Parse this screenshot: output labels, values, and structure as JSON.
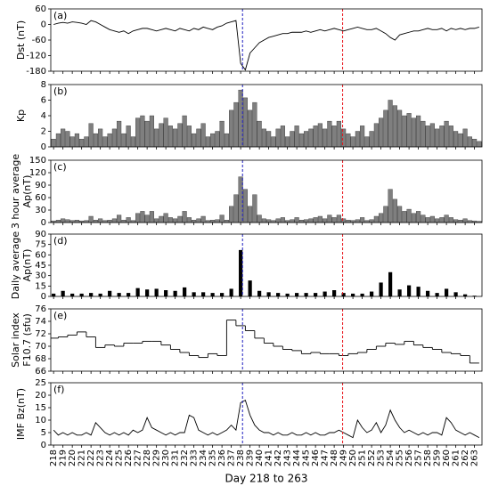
{
  "chart_data": [
    {
      "type": "line",
      "panel_label": "(a)",
      "ylabel": [
        "Dst (nT)"
      ],
      "color": "#000000",
      "xlim": [
        217.7,
        263.8
      ],
      "ylim": [
        -180,
        60
      ],
      "yticks": [
        -180,
        -120,
        -60,
        0,
        60
      ],
      "x": [
        218,
        218.5,
        219,
        219.5,
        220,
        220.5,
        221,
        221.5,
        222,
        222.5,
        223,
        223.5,
        224,
        224.5,
        225,
        225.5,
        226,
        226.5,
        227,
        227.5,
        228,
        228.5,
        229,
        229.5,
        230,
        230.5,
        231,
        231.5,
        232,
        232.5,
        233,
        233.5,
        234,
        234.5,
        235,
        235.5,
        236,
        236.5,
        237,
        237.5,
        238,
        238.5,
        239,
        239.5,
        240,
        240.5,
        241,
        241.5,
        242,
        242.5,
        243,
        243.5,
        244,
        244.5,
        245,
        245.5,
        246,
        246.5,
        247,
        247.5,
        248,
        248.5,
        249,
        249.5,
        250,
        250.5,
        251,
        251.5,
        252,
        252.5,
        253,
        253.5,
        254,
        254.5,
        255,
        255.5,
        256,
        256.5,
        257,
        257.5,
        258,
        258.5,
        259,
        259.5,
        260,
        260.5,
        261,
        261.5,
        262,
        262.5,
        263,
        263.5
      ],
      "values": [
        0,
        5,
        8,
        5,
        10,
        8,
        5,
        0,
        15,
        10,
        0,
        -10,
        -20,
        -25,
        -30,
        -25,
        -35,
        -25,
        -20,
        -15,
        -15,
        -20,
        -25,
        -20,
        -15,
        -20,
        -25,
        -15,
        -20,
        -25,
        -15,
        -20,
        -10,
        -15,
        -20,
        -10,
        -5,
        5,
        10,
        15,
        -150,
        -175,
        -110,
        -90,
        -70,
        -60,
        -50,
        -45,
        -40,
        -35,
        -35,
        -30,
        -30,
        -30,
        -25,
        -30,
        -25,
        -20,
        -25,
        -20,
        -15,
        -20,
        -25,
        -20,
        -15,
        -10,
        -15,
        -20,
        -20,
        -15,
        -25,
        -35,
        -50,
        -60,
        -40,
        -35,
        -30,
        -25,
        -25,
        -20,
        -15,
        -20,
        -20,
        -15,
        -25,
        -15,
        -20,
        -15,
        -20,
        -15,
        -15,
        -10
      ]
    },
    {
      "type": "bar",
      "panel_label": "(b)",
      "ylabel": [
        "Kp"
      ],
      "color": "#7f7f7f",
      "xlim": [
        217.7,
        263.8
      ],
      "ylim": [
        0,
        8
      ],
      "yticks": [
        0,
        2,
        4,
        6,
        8
      ],
      "x": [
        218,
        218.5,
        219,
        219.5,
        220,
        220.5,
        221,
        221.5,
        222,
        222.5,
        223,
        223.5,
        224,
        224.5,
        225,
        225.5,
        226,
        226.5,
        227,
        227.5,
        228,
        228.5,
        229,
        229.5,
        230,
        230.5,
        231,
        231.5,
        232,
        232.5,
        233,
        233.5,
        234,
        234.5,
        235,
        235.5,
        236,
        236.5,
        237,
        237.5,
        238,
        238.5,
        239,
        239.5,
        240,
        240.5,
        241,
        241.5,
        242,
        242.5,
        243,
        243.5,
        244,
        244.5,
        245,
        245.5,
        246,
        246.5,
        247,
        247.5,
        248,
        248.5,
        249,
        249.5,
        250,
        250.5,
        251,
        251.5,
        252,
        252.5,
        253,
        253.5,
        254,
        254.5,
        255,
        255.5,
        256,
        256.5,
        257,
        257.5,
        258,
        258.5,
        259,
        259.5,
        260,
        260.5,
        261,
        261.5,
        262,
        262.5,
        263,
        263.5
      ],
      "values": [
        1.0,
        1.7,
        2.3,
        2.0,
        1.3,
        1.7,
        1.0,
        1.3,
        3.0,
        1.7,
        2.3,
        1.3,
        1.7,
        2.3,
        3.3,
        1.7,
        2.7,
        1.3,
        3.7,
        4.0,
        3.3,
        4.0,
        2.3,
        3.0,
        3.7,
        2.7,
        2.3,
        3.0,
        4.0,
        2.7,
        1.7,
        2.3,
        3.0,
        1.3,
        1.7,
        2.0,
        3.3,
        1.7,
        4.7,
        5.7,
        7.3,
        6.3,
        4.7,
        5.7,
        3.3,
        2.3,
        2.0,
        1.3,
        2.3,
        2.7,
        1.3,
        2.0,
        2.7,
        1.7,
        2.0,
        2.3,
        2.7,
        3.0,
        2.3,
        3.3,
        2.7,
        3.3,
        2.3,
        1.7,
        1.3,
        2.0,
        2.7,
        1.3,
        2.0,
        3.0,
        3.7,
        4.7,
        6.0,
        5.3,
        4.7,
        4.0,
        4.3,
        3.7,
        4.0,
        3.3,
        2.7,
        3.0,
        2.3,
        2.7,
        3.3,
        2.7,
        2.0,
        1.7,
        2.3,
        1.3,
        1.0,
        0.7
      ]
    },
    {
      "type": "bar",
      "panel_label": "(c)",
      "ylabel": [
        "3 hour average",
        "Ap(nT)"
      ],
      "color": "#7f7f7f",
      "xlim": [
        217.7,
        263.8
      ],
      "ylim": [
        0,
        150
      ],
      "yticks": [
        0,
        30,
        60,
        90,
        120,
        150
      ],
      "x": [
        218,
        218.5,
        219,
        219.5,
        220,
        220.5,
        221,
        221.5,
        222,
        222.5,
        223,
        223.5,
        224,
        224.5,
        225,
        225.5,
        226,
        226.5,
        227,
        227.5,
        228,
        228.5,
        229,
        229.5,
        230,
        230.5,
        231,
        231.5,
        232,
        232.5,
        233,
        233.5,
        234,
        234.5,
        235,
        235.5,
        236,
        236.5,
        237,
        237.5,
        238,
        238.5,
        239,
        239.5,
        240,
        240.5,
        241,
        241.5,
        242,
        242.5,
        243,
        243.5,
        244,
        244.5,
        245,
        245.5,
        246,
        246.5,
        247,
        247.5,
        248,
        248.5,
        249,
        249.5,
        250,
        250.5,
        251,
        251.5,
        252,
        252.5,
        253,
        253.5,
        254,
        254.5,
        255,
        255.5,
        256,
        256.5,
        257,
        257.5,
        258,
        258.5,
        259,
        259.5,
        260,
        260.5,
        261,
        261.5,
        262,
        262.5,
        263,
        263.5
      ],
      "values": [
        4,
        6,
        9,
        7,
        5,
        6,
        4,
        5,
        15,
        6,
        9,
        5,
        6,
        9,
        18,
        6,
        12,
        5,
        22,
        27,
        18,
        27,
        9,
        15,
        22,
        12,
        9,
        15,
        27,
        12,
        6,
        9,
        15,
        5,
        6,
        7,
        18,
        6,
        39,
        67,
        110,
        80,
        39,
        67,
        18,
        9,
        7,
        5,
        9,
        12,
        5,
        7,
        12,
        6,
        7,
        9,
        12,
        15,
        9,
        18,
        12,
        18,
        9,
        6,
        5,
        7,
        12,
        5,
        7,
        15,
        22,
        39,
        80,
        56,
        39,
        27,
        32,
        22,
        27,
        18,
        12,
        15,
        9,
        12,
        18,
        12,
        7,
        6,
        9,
        5,
        4,
        3
      ]
    },
    {
      "type": "bar",
      "panel_label": "(d)",
      "ylabel": [
        "Daily average",
        "Ap(nT)"
      ],
      "color": "#000000",
      "xlim": [
        217.7,
        263.8
      ],
      "ylim": [
        0,
        90
      ],
      "yticks": [
        0,
        15,
        30,
        45,
        60,
        75,
        90
      ],
      "x": [
        218,
        219,
        220,
        221,
        222,
        223,
        224,
        225,
        226,
        227,
        228,
        229,
        230,
        231,
        232,
        233,
        234,
        235,
        236,
        237,
        238,
        239,
        240,
        241,
        242,
        243,
        244,
        245,
        246,
        247,
        248,
        249,
        250,
        251,
        252,
        253,
        254,
        255,
        256,
        257,
        258,
        259,
        260,
        261,
        262,
        263
      ],
      "values": [
        4,
        8,
        4,
        4,
        5,
        4,
        8,
        5,
        5,
        12,
        10,
        11,
        9,
        8,
        13,
        6,
        6,
        5,
        5,
        11,
        67,
        23,
        8,
        6,
        5,
        4,
        5,
        5,
        5,
        7,
        9,
        5,
        4,
        4,
        7,
        20,
        35,
        10,
        16,
        14,
        8,
        5,
        11,
        6,
        3,
        1
      ]
    },
    {
      "type": "step",
      "panel_label": "(e)",
      "ylabel": [
        "Solar index",
        "F10.7 (sfu)"
      ],
      "color": "#000000",
      "xlim": [
        217.7,
        263.8
      ],
      "ylim": [
        66,
        76
      ],
      "yticks": [
        66,
        68,
        70,
        72,
        74,
        76
      ],
      "x": [
        218,
        219,
        220,
        221,
        222,
        223,
        224,
        225,
        226,
        227,
        228,
        229,
        230,
        231,
        232,
        233,
        234,
        235,
        236,
        237,
        238,
        239,
        240,
        241,
        242,
        243,
        244,
        245,
        246,
        247,
        248,
        249,
        250,
        251,
        252,
        253,
        254,
        255,
        256,
        257,
        258,
        259,
        260,
        261,
        262,
        263
      ],
      "values": [
        71.3,
        71.5,
        71.8,
        72.3,
        71.5,
        69.8,
        70.2,
        70.0,
        70.5,
        70.5,
        70.8,
        70.8,
        70.2,
        69.5,
        69.0,
        68.5,
        68.2,
        68.8,
        68.5,
        74.2,
        73.3,
        72.5,
        71.3,
        70.5,
        70.0,
        69.5,
        69.3,
        68.8,
        69.0,
        68.8,
        68.8,
        68.5,
        68.8,
        69.0,
        69.5,
        70.0,
        70.5,
        70.3,
        70.8,
        70.2,
        69.8,
        69.5,
        69.0,
        68.8,
        68.5,
        67.3
      ]
    },
    {
      "type": "line",
      "panel_label": "(f)",
      "ylabel": [
        "IMF Bz(nT)"
      ],
      "color": "#000000",
      "xlim": [
        217.7,
        263.8
      ],
      "ylim": [
        0,
        25
      ],
      "yticks": [
        0,
        5,
        10,
        15,
        20,
        25
      ],
      "xlabel": "Day 218 to 263",
      "xticks": [
        218,
        219,
        220,
        221,
        222,
        223,
        224,
        225,
        226,
        227,
        228,
        229,
        230,
        231,
        232,
        233,
        234,
        235,
        236,
        237,
        238,
        239,
        240,
        241,
        242,
        243,
        244,
        245,
        246,
        247,
        248,
        249,
        250,
        251,
        252,
        253,
        254,
        255,
        256,
        257,
        258,
        259,
        260,
        261,
        262,
        263
      ],
      "x": [
        218,
        218.5,
        219,
        219.5,
        220,
        220.5,
        221,
        221.5,
        222,
        222.5,
        223,
        223.5,
        224,
        224.5,
        225,
        225.5,
        226,
        226.5,
        227,
        227.5,
        228,
        228.5,
        229,
        229.5,
        230,
        230.5,
        231,
        231.5,
        232,
        232.5,
        233,
        233.5,
        234,
        234.5,
        235,
        235.5,
        236,
        236.5,
        237,
        237.5,
        238,
        238.5,
        239,
        239.5,
        240,
        240.5,
        241,
        241.5,
        242,
        242.5,
        243,
        243.5,
        244,
        244.5,
        245,
        245.5,
        246,
        246.5,
        247,
        247.5,
        248,
        248.5,
        249,
        249.5,
        250,
        250.5,
        251,
        251.5,
        252,
        252.5,
        253,
        253.5,
        254,
        254.5,
        255,
        255.5,
        256,
        256.5,
        257,
        257.5,
        258,
        258.5,
        259,
        259.5,
        260,
        260.5,
        261,
        261.5,
        262,
        262.5,
        263,
        263.5
      ],
      "values": [
        6,
        4,
        5,
        4,
        5,
        4,
        4,
        5,
        4,
        9,
        7,
        5,
        4,
        5,
        4,
        5,
        4,
        6,
        5,
        6,
        11,
        7,
        6,
        5,
        4,
        5,
        4,
        5,
        5,
        12,
        11,
        6,
        5,
        4,
        5,
        4,
        5,
        6,
        8,
        6,
        17,
        18,
        12,
        8,
        6,
        5,
        5,
        4,
        5,
        4,
        4,
        5,
        4,
        4,
        5,
        4,
        5,
        4,
        4,
        5,
        5,
        6,
        5,
        4,
        3,
        10,
        7,
        5,
        6,
        9,
        5,
        8,
        14,
        10,
        7,
        5,
        6,
        5,
        4,
        5,
        4,
        5,
        5,
        4,
        11,
        9,
        6,
        5,
        4,
        5,
        4,
        3
      ]
    }
  ],
  "markers": [
    {
      "x": 238.2,
      "color": "#2020c0"
    },
    {
      "x": 248.9,
      "color": "#e8131b"
    }
  ]
}
